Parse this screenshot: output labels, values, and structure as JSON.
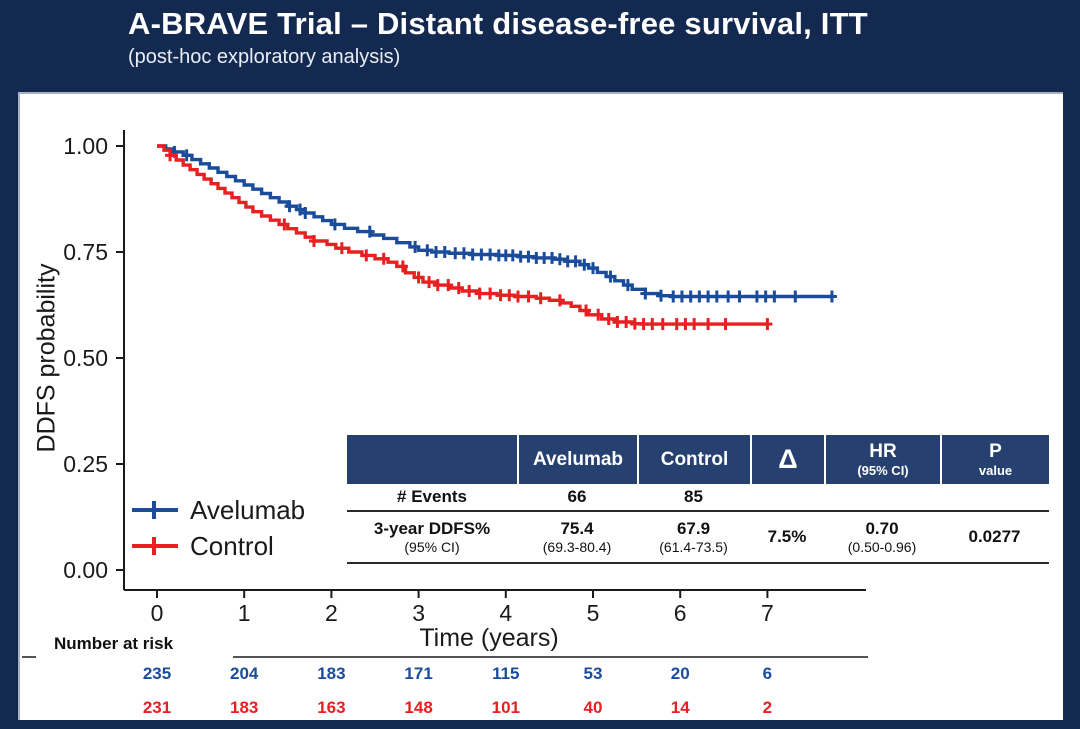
{
  "slide": {
    "title": "A-BRAVE Trial – Distant disease-free survival, ITT",
    "subtitle": "(post-hoc exploratory analysis)",
    "colors": {
      "background": "#132950",
      "card": "#ffffff",
      "table_header": "#264070",
      "avelumab_blue": "#1B4C9B",
      "control_red": "#E82021",
      "ink": "#1a1a1a"
    }
  },
  "chart_data": {
    "type": "line",
    "subtype": "kaplan-meier",
    "title": "",
    "xlabel": "Time (years)",
    "ylabel": "DDFS probability",
    "xlim": [
      0,
      7.9
    ],
    "ylim": [
      0,
      1.0
    ],
    "grid": false,
    "legend_position": "inside-bottom-left",
    "xticks": [
      0,
      1,
      2,
      3,
      4,
      5,
      6,
      7
    ],
    "yticks": [
      {
        "label": "0.00",
        "value": 0
      },
      {
        "label": "0.25",
        "value": 0.25
      },
      {
        "label": "0.50",
        "value": 0.5
      },
      {
        "label": "0.75",
        "value": 0.75
      },
      {
        "label": "1.00",
        "value": 1
      }
    ],
    "series": [
      {
        "name": "Avelumab",
        "color": "#1B4C9B",
        "km_points": [
          [
            0,
            1.0
          ],
          [
            0.1,
            0.993
          ],
          [
            0.2,
            0.986
          ],
          [
            0.3,
            0.978
          ],
          [
            0.4,
            0.968
          ],
          [
            0.5,
            0.958
          ],
          [
            0.6,
            0.948
          ],
          [
            0.7,
            0.938
          ],
          [
            0.8,
            0.928
          ],
          [
            0.9,
            0.918
          ],
          [
            1.0,
            0.908
          ],
          [
            1.1,
            0.898
          ],
          [
            1.2,
            0.888
          ],
          [
            1.3,
            0.878
          ],
          [
            1.4,
            0.868
          ],
          [
            1.5,
            0.858
          ],
          [
            1.6,
            0.85
          ],
          [
            1.7,
            0.842
          ],
          [
            1.8,
            0.833
          ],
          [
            1.9,
            0.824
          ],
          [
            2.0,
            0.815
          ],
          [
            2.15,
            0.806
          ],
          [
            2.3,
            0.798
          ],
          [
            2.45,
            0.79
          ],
          [
            2.6,
            0.782
          ],
          [
            2.75,
            0.772
          ],
          [
            2.9,
            0.762
          ],
          [
            3.0,
            0.754
          ],
          [
            3.15,
            0.75
          ],
          [
            3.35,
            0.747
          ],
          [
            3.6,
            0.744
          ],
          [
            3.9,
            0.742
          ],
          [
            4.15,
            0.739
          ],
          [
            4.35,
            0.736
          ],
          [
            4.55,
            0.733
          ],
          [
            4.7,
            0.728
          ],
          [
            4.85,
            0.72
          ],
          [
            4.95,
            0.712
          ],
          [
            5.05,
            0.702
          ],
          [
            5.15,
            0.692
          ],
          [
            5.25,
            0.682
          ],
          [
            5.35,
            0.672
          ],
          [
            5.45,
            0.662
          ],
          [
            5.6,
            0.652
          ],
          [
            5.75,
            0.647
          ],
          [
            5.9,
            0.645
          ],
          [
            7.74,
            0.645
          ]
        ],
        "censor_times": [
          0.2,
          0.34,
          1.52,
          1.64,
          1.7,
          2.04,
          2.44,
          2.96,
          3.1,
          3.2,
          3.3,
          3.42,
          3.52,
          3.62,
          3.72,
          3.82,
          3.92,
          4.0,
          4.08,
          4.17,
          4.26,
          4.35,
          4.44,
          4.53,
          4.62,
          4.71,
          4.8,
          4.9,
          5.0,
          5.2,
          5.4,
          5.6,
          5.78,
          5.92,
          6.02,
          6.12,
          6.22,
          6.32,
          6.42,
          6.55,
          6.68,
          6.88,
          6.98,
          7.08,
          7.32,
          7.74
        ]
      },
      {
        "name": "Control",
        "color": "#E82021",
        "km_points": [
          [
            0,
            1.0
          ],
          [
            0.08,
            0.99
          ],
          [
            0.15,
            0.978
          ],
          [
            0.22,
            0.967
          ],
          [
            0.3,
            0.955
          ],
          [
            0.38,
            0.944
          ],
          [
            0.46,
            0.933
          ],
          [
            0.54,
            0.922
          ],
          [
            0.62,
            0.911
          ],
          [
            0.7,
            0.9
          ],
          [
            0.78,
            0.889
          ],
          [
            0.86,
            0.878
          ],
          [
            0.94,
            0.867
          ],
          [
            1.02,
            0.856
          ],
          [
            1.1,
            0.845
          ],
          [
            1.2,
            0.835
          ],
          [
            1.3,
            0.825
          ],
          [
            1.4,
            0.815
          ],
          [
            1.5,
            0.805
          ],
          [
            1.6,
            0.795
          ],
          [
            1.7,
            0.785
          ],
          [
            1.8,
            0.776
          ],
          [
            1.95,
            0.768
          ],
          [
            2.05,
            0.759
          ],
          [
            2.2,
            0.75
          ],
          [
            2.35,
            0.742
          ],
          [
            2.5,
            0.734
          ],
          [
            2.65,
            0.726
          ],
          [
            2.75,
            0.716
          ],
          [
            2.85,
            0.701
          ],
          [
            2.95,
            0.69
          ],
          [
            3.05,
            0.679
          ],
          [
            3.2,
            0.672
          ],
          [
            3.35,
            0.665
          ],
          [
            3.5,
            0.658
          ],
          [
            3.7,
            0.652
          ],
          [
            3.9,
            0.648
          ],
          [
            4.1,
            0.645
          ],
          [
            4.35,
            0.641
          ],
          [
            4.5,
            0.636
          ],
          [
            4.65,
            0.63
          ],
          [
            4.75,
            0.622
          ],
          [
            4.85,
            0.612
          ],
          [
            4.95,
            0.602
          ],
          [
            5.1,
            0.592
          ],
          [
            5.25,
            0.585
          ],
          [
            5.45,
            0.581
          ],
          [
            5.55,
            0.58
          ],
          [
            7.0,
            0.58
          ]
        ],
        "censor_times": [
          0.15,
          1.46,
          1.8,
          2.12,
          2.4,
          2.6,
          2.82,
          3.0,
          3.12,
          3.22,
          3.34,
          3.46,
          3.58,
          3.7,
          3.82,
          3.94,
          4.04,
          4.14,
          4.26,
          4.4,
          4.62,
          4.92,
          5.06,
          5.18,
          5.28,
          5.38,
          5.48,
          5.58,
          5.68,
          5.8,
          5.96,
          6.06,
          6.16,
          6.32,
          6.52,
          7.0
        ]
      }
    ],
    "number_at_risk": {
      "label": "Number at risk",
      "times": [
        0,
        1,
        2,
        3,
        4,
        5,
        6,
        7
      ],
      "rows": [
        {
          "name": "Avelumab",
          "color": "#1B4C9B",
          "values": [
            235,
            204,
            183,
            171,
            115,
            53,
            20,
            6
          ]
        },
        {
          "name": "Control",
          "color": "#E82021",
          "values": [
            231,
            183,
            163,
            148,
            101,
            40,
            14,
            2
          ]
        }
      ]
    }
  },
  "results_table": {
    "header": {
      "col0": "",
      "col1": "Avelumab",
      "col2": "Control",
      "col3": "Δ",
      "col4_line1": "HR",
      "col4_line2": "(95% CI)",
      "col5_line1": "P",
      "col5_line2": "value"
    },
    "rows": {
      "events": {
        "label": "# Events",
        "avelumab": "66",
        "control": "85",
        "delta": "",
        "hr": "",
        "p": ""
      },
      "ddfs": {
        "label_line1": "3-year DDFS%",
        "label_line2": "(95% CI)",
        "avelumab_line1": "75.4",
        "avelumab_line2": "(69.3-80.4)",
        "control_line1": "67.9",
        "control_line2": "(61.4-73.5)",
        "delta": "7.5%",
        "hr_line1": "0.70",
        "hr_line2": "(0.50-0.96)",
        "p": "0.0277"
      }
    }
  }
}
